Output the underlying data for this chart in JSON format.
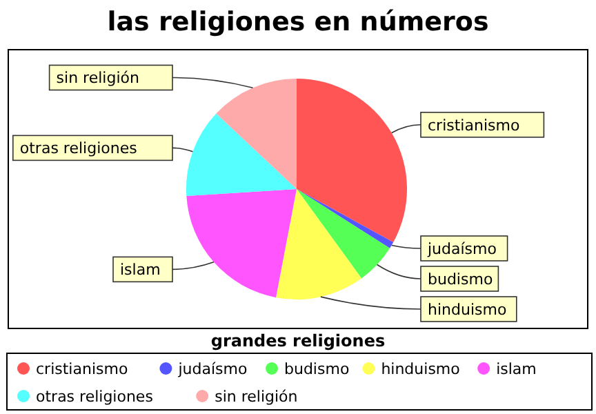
{
  "chart_data": {
    "type": "pie",
    "title": "las religiones en números",
    "legend_title": "grandes religiones",
    "legend": "bottom",
    "categories": [
      "cristianismo",
      "judaísmo",
      "budismo",
      "hinduismo",
      "islam",
      "otras religiones",
      "sin religión"
    ],
    "values": [
      33,
      1,
      6,
      13,
      21,
      13,
      13
    ],
    "colors": [
      "#ff5555",
      "#5555ff",
      "#55ff55",
      "#ffff55",
      "#ff55ff",
      "#55ffff",
      "#ffaaaa"
    ]
  }
}
